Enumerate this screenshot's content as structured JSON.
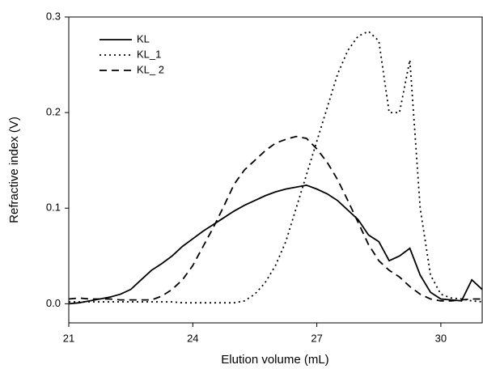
{
  "chart_data": {
    "type": "line",
    "x_label": "Elution volume (mL)",
    "y_label": "Refractive index (V)",
    "x": [
      21,
      21.25,
      21.5,
      21.75,
      22,
      22.25,
      22.5,
      22.75,
      23,
      23.25,
      23.5,
      23.75,
      24,
      24.25,
      24.5,
      24.75,
      25,
      25.25,
      25.5,
      25.75,
      26,
      26.25,
      26.5,
      26.75,
      27,
      27.25,
      27.5,
      27.75,
      28,
      28.25,
      28.5,
      28.75,
      29,
      29.25,
      29.5,
      29.75,
      30,
      30.25,
      30.5,
      30.75,
      31
    ],
    "series": [
      {
        "name": "KL",
        "color": "#000000",
        "dash": "solid",
        "values": [
          0,
          0.001,
          0.003,
          0.005,
          0.007,
          0.01,
          0.015,
          0.025,
          0.035,
          0.042,
          0.05,
          0.06,
          0.068,
          0.076,
          0.083,
          0.09,
          0.097,
          0.103,
          0.108,
          0.113,
          0.117,
          0.12,
          0.122,
          0.124,
          0.12,
          0.115,
          0.108,
          0.098,
          0.088,
          0.072,
          0.065,
          0.045,
          0.05,
          0.058,
          0.03,
          0.012,
          0.005,
          0.004,
          0.003,
          0.025,
          0.015
        ]
      },
      {
        "name": "KL_1",
        "color": "#000000",
        "dash": "dotted",
        "values": [
          0.002,
          0.002,
          0.002,
          0.002,
          0.002,
          0.002,
          0.002,
          0.002,
          0.002,
          0.002,
          0.002,
          0.001,
          0.001,
          0.001,
          0.001,
          0.001,
          0.001,
          0.003,
          0.01,
          0.022,
          0.04,
          0.065,
          0.1,
          0.135,
          0.17,
          0.205,
          0.24,
          0.265,
          0.28,
          0.285,
          0.275,
          0.2,
          0.2,
          0.255,
          0.1,
          0.03,
          0.01,
          0.006,
          0.005,
          0.003,
          0.002
        ]
      },
      {
        "name": "KL_ 2",
        "color": "#000000",
        "dash": "dashed",
        "values": [
          0.005,
          0.006,
          0.005,
          0.005,
          0.005,
          0.004,
          0.004,
          0.004,
          0.004,
          0.008,
          0.015,
          0.025,
          0.04,
          0.06,
          0.08,
          0.102,
          0.125,
          0.14,
          0.15,
          0.16,
          0.168,
          0.172,
          0.175,
          0.173,
          0.162,
          0.148,
          0.13,
          0.108,
          0.085,
          0.062,
          0.045,
          0.035,
          0.028,
          0.018,
          0.01,
          0.005,
          0.003,
          0.003,
          0.004,
          0.005,
          0.005
        ]
      }
    ],
    "xlim": [
      21,
      31
    ],
    "xticks": [
      21,
      24,
      27,
      30
    ],
    "ylim": [
      -0.02,
      0.3
    ],
    "yticks": [
      {
        "value": 0,
        "label": "0.0"
      },
      0.1,
      0.2,
      0.3
    ],
    "grid": false,
    "legend": "upper left"
  }
}
